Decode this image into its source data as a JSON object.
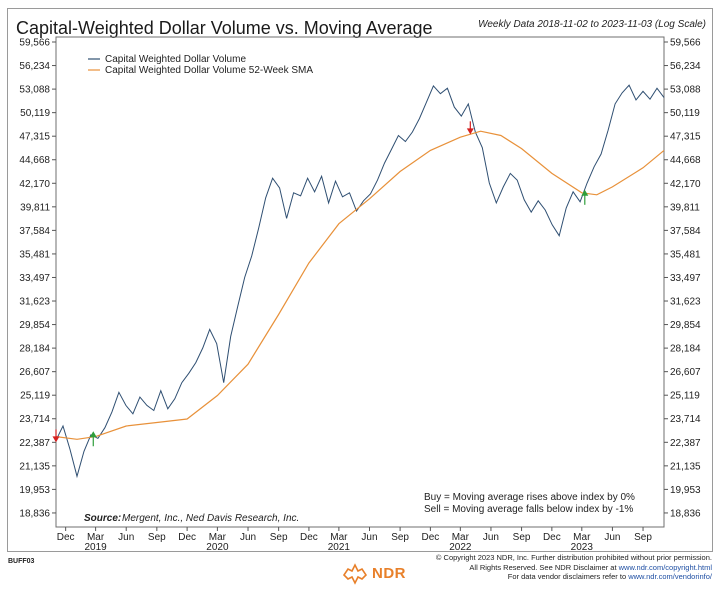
{
  "title": "Capital-Weighted Dollar Volume vs. Moving Average",
  "subtitle": "Weekly Data 2018-11-02 to 2023-11-03 (Log Scale)",
  "source": "Source:",
  "source_text": "Mergent, Inc., Ned Davis Research, Inc.",
  "signal_notes": [
    "Buy = Moving average rises above index by 0%",
    "Sell = Moving average falls below index by -1%"
  ],
  "footer": {
    "line1": "© Copyright 2023 NDR, Inc. Further distribution prohibited without prior permission.",
    "line2_prefix": "All Rights Reserved. See NDR Disclaimer at ",
    "line2_link": "www.ndr.com/copyright.html",
    "line3_prefix": "For data vendor disclaimers refer to ",
    "line3_link": "www.ndr.com/vendorinfo/",
    "doc_id": "BUFF03"
  },
  "logo_text": "NDR",
  "colors": {
    "index": "#2f4f72",
    "sma": "#e8913a",
    "buy": "#2e9e3a",
    "sell": "#d42020"
  },
  "chart_data": {
    "type": "line",
    "scale": "log",
    "ylim": [
      18200,
      60300
    ],
    "y_ticks": [
      "18,836",
      "19,953",
      "21,135",
      "22,387",
      "23,714",
      "25,119",
      "26,607",
      "28,184",
      "29,854",
      "31,623",
      "33,497",
      "35,481",
      "37,584",
      "39,811",
      "42,170",
      "44,668",
      "47,315",
      "50,119",
      "53,088",
      "56,234",
      "59,566"
    ],
    "x_ticks": [
      {
        "label": "Dec",
        "date": "2018-12-01"
      },
      {
        "label": "Mar",
        "date": "2019-03-01",
        "year": "2019"
      },
      {
        "label": "Jun",
        "date": "2019-06-01"
      },
      {
        "label": "Sep",
        "date": "2019-09-01"
      },
      {
        "label": "Dec",
        "date": "2019-12-01"
      },
      {
        "label": "Mar",
        "date": "2020-03-01",
        "year": "2020"
      },
      {
        "label": "Jun",
        "date": "2020-06-01"
      },
      {
        "label": "Sep",
        "date": "2020-09-01"
      },
      {
        "label": "Dec",
        "date": "2020-12-01"
      },
      {
        "label": "Mar",
        "date": "2021-03-01",
        "year": "2021"
      },
      {
        "label": "Jun",
        "date": "2021-06-01"
      },
      {
        "label": "Sep",
        "date": "2021-09-01"
      },
      {
        "label": "Dec",
        "date": "2021-12-01"
      },
      {
        "label": "Mar",
        "date": "2022-03-01",
        "year": "2022"
      },
      {
        "label": "Jun",
        "date": "2022-06-01"
      },
      {
        "label": "Sep",
        "date": "2022-09-01"
      },
      {
        "label": "Dec",
        "date": "2022-12-01"
      },
      {
        "label": "Mar",
        "date": "2023-03-01",
        "year": "2023"
      },
      {
        "label": "Jun",
        "date": "2023-06-01"
      },
      {
        "label": "Sep",
        "date": "2023-09-01"
      }
    ],
    "x_range": [
      "2018-11-02",
      "2023-11-03"
    ],
    "legend_position": "top-left",
    "grid": false,
    "series": [
      {
        "name": "Capital Weighted Dollar Volume",
        "points": [
          [
            "2018-11-02",
            22500
          ],
          [
            "2018-11-23",
            23300
          ],
          [
            "2018-12-14",
            22000
          ],
          [
            "2019-01-04",
            20600
          ],
          [
            "2019-01-25",
            21900
          ],
          [
            "2019-02-15",
            22800
          ],
          [
            "2019-03-08",
            22600
          ],
          [
            "2019-03-29",
            23200
          ],
          [
            "2019-04-19",
            24100
          ],
          [
            "2019-05-10",
            25300
          ],
          [
            "2019-05-31",
            24500
          ],
          [
            "2019-06-21",
            24000
          ],
          [
            "2019-07-12",
            25000
          ],
          [
            "2019-08-02",
            24500
          ],
          [
            "2019-08-23",
            24200
          ],
          [
            "2019-09-13",
            25400
          ],
          [
            "2019-10-04",
            24300
          ],
          [
            "2019-10-25",
            24900
          ],
          [
            "2019-11-15",
            25900
          ],
          [
            "2019-12-06",
            26500
          ],
          [
            "2019-12-27",
            27200
          ],
          [
            "2020-01-17",
            28200
          ],
          [
            "2020-02-07",
            29500
          ],
          [
            "2020-02-28",
            28500
          ],
          [
            "2020-03-20",
            25900
          ],
          [
            "2020-04-10",
            29000
          ],
          [
            "2020-05-01",
            31200
          ],
          [
            "2020-05-22",
            33500
          ],
          [
            "2020-06-12",
            35300
          ],
          [
            "2020-07-03",
            37800
          ],
          [
            "2020-07-24",
            40700
          ],
          [
            "2020-08-14",
            42700
          ],
          [
            "2020-09-04",
            41700
          ],
          [
            "2020-09-25",
            38700
          ],
          [
            "2020-10-16",
            41200
          ],
          [
            "2020-11-06",
            40900
          ],
          [
            "2020-11-27",
            42700
          ],
          [
            "2020-12-18",
            41300
          ],
          [
            "2021-01-08",
            42900
          ],
          [
            "2021-01-29",
            40200
          ],
          [
            "2021-02-19",
            42400
          ],
          [
            "2021-03-12",
            40800
          ],
          [
            "2021-04-02",
            41200
          ],
          [
            "2021-04-23",
            39400
          ],
          [
            "2021-05-14",
            40400
          ],
          [
            "2021-06-04",
            41100
          ],
          [
            "2021-06-25",
            42500
          ],
          [
            "2021-07-16",
            44300
          ],
          [
            "2021-08-06",
            45800
          ],
          [
            "2021-08-27",
            47400
          ],
          [
            "2021-09-17",
            46700
          ],
          [
            "2021-10-08",
            47800
          ],
          [
            "2021-10-29",
            49400
          ],
          [
            "2021-11-19",
            51400
          ],
          [
            "2021-12-10",
            53500
          ],
          [
            "2021-12-31",
            52500
          ],
          [
            "2022-01-21",
            53200
          ],
          [
            "2022-02-11",
            50800
          ],
          [
            "2022-03-04",
            49700
          ],
          [
            "2022-03-25",
            51200
          ],
          [
            "2022-04-15",
            47800
          ],
          [
            "2022-05-06",
            46000
          ],
          [
            "2022-05-27",
            42200
          ],
          [
            "2022-06-17",
            40200
          ],
          [
            "2022-07-08",
            41800
          ],
          [
            "2022-07-29",
            43200
          ],
          [
            "2022-08-19",
            42500
          ],
          [
            "2022-09-09",
            40500
          ],
          [
            "2022-09-30",
            39300
          ],
          [
            "2022-10-21",
            40400
          ],
          [
            "2022-11-11",
            39500
          ],
          [
            "2022-12-02",
            38100
          ],
          [
            "2022-12-23",
            37100
          ],
          [
            "2023-01-13",
            39700
          ],
          [
            "2023-02-03",
            41300
          ],
          [
            "2023-02-24",
            40300
          ],
          [
            "2023-03-17",
            42200
          ],
          [
            "2023-04-07",
            43900
          ],
          [
            "2023-04-28",
            45300
          ],
          [
            "2023-05-19",
            48000
          ],
          [
            "2023-06-09",
            51200
          ],
          [
            "2023-06-30",
            52600
          ],
          [
            "2023-07-21",
            53600
          ],
          [
            "2023-08-11",
            51700
          ],
          [
            "2023-09-01",
            52800
          ],
          [
            "2023-09-22",
            51800
          ],
          [
            "2023-10-13",
            53200
          ],
          [
            "2023-11-03",
            52000
          ]
        ]
      },
      {
        "name": "Capital Weighted Dollar Volume 52-Week SMA",
        "points": [
          [
            "2018-11-02",
            22700
          ],
          [
            "2019-01-04",
            22550
          ],
          [
            "2019-03-01",
            22700
          ],
          [
            "2019-06-01",
            23300
          ],
          [
            "2019-09-01",
            23500
          ],
          [
            "2019-12-01",
            23700
          ],
          [
            "2020-03-01",
            25100
          ],
          [
            "2020-06-01",
            27100
          ],
          [
            "2020-09-01",
            30600
          ],
          [
            "2020-12-01",
            34700
          ],
          [
            "2021-03-01",
            38200
          ],
          [
            "2021-06-01",
            40600
          ],
          [
            "2021-09-01",
            43400
          ],
          [
            "2021-12-01",
            45700
          ],
          [
            "2022-03-01",
            47200
          ],
          [
            "2022-05-01",
            47900
          ],
          [
            "2022-07-01",
            47400
          ],
          [
            "2022-09-01",
            45900
          ],
          [
            "2022-12-01",
            43200
          ],
          [
            "2023-03-01",
            41200
          ],
          [
            "2023-04-15",
            41000
          ],
          [
            "2023-06-01",
            41800
          ],
          [
            "2023-09-01",
            43800
          ],
          [
            "2023-11-03",
            45700
          ]
        ]
      }
    ],
    "signals": [
      {
        "type": "sell",
        "date": "2018-11-02",
        "value": 22600
      },
      {
        "type": "buy",
        "date": "2019-02-22",
        "value": 22500
      },
      {
        "type": "sell",
        "date": "2022-03-31",
        "value": 48000
      },
      {
        "type": "buy",
        "date": "2023-03-10",
        "value": 40600
      }
    ]
  }
}
